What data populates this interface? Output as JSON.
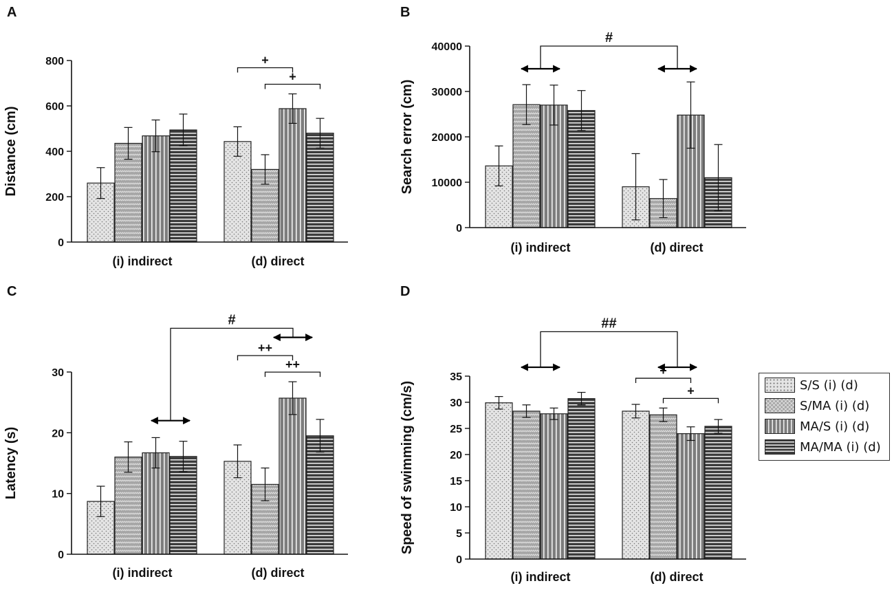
{
  "legend": {
    "entries": [
      {
        "label": "S/S (i) (d)",
        "pattern": "dots",
        "color": "#e4e4e4"
      },
      {
        "label": "S/MA (i) (d)",
        "pattern": "zigzag",
        "color": "#a6a6a6"
      },
      {
        "label": "MA/S (i) (d)",
        "pattern": "vertical-lines",
        "color": "#7d7d7d"
      },
      {
        "label": "MA/MA (i) (d)",
        "pattern": "horizontal-lines",
        "color": "#3c3c3c"
      }
    ]
  },
  "chart_data": [
    {
      "type": "bar",
      "panel": "A",
      "ylabel": "Distance (cm)",
      "ylim": [
        0,
        800
      ],
      "yticks": [
        "0",
        "200",
        "400",
        "600",
        "800"
      ],
      "categories": [
        "(i) indirect",
        "(d) direct"
      ],
      "series": [
        {
          "name": "S/S (i) (d)",
          "values": [
            260,
            443
          ],
          "errors": [
            68,
            65
          ]
        },
        {
          "name": "S/MA (i) (d)",
          "values": [
            435,
            320
          ],
          "errors": [
            70,
            65
          ]
        },
        {
          "name": "MA/S (i) (d)",
          "values": [
            468,
            588
          ],
          "errors": [
            70,
            65
          ]
        },
        {
          "name": "MA/MA (i) (d)",
          "values": [
            494,
            480
          ],
          "errors": [
            70,
            65
          ]
        }
      ],
      "annotations": [
        {
          "text": "+",
          "from": [
            1,
            0
          ],
          "to": [
            1,
            2
          ]
        },
        {
          "text": "+",
          "from": [
            1,
            1
          ],
          "to": [
            1,
            3
          ]
        }
      ],
      "arrows": []
    },
    {
      "type": "bar",
      "panel": "B",
      "ylabel": "Search error (cm)",
      "ylim": [
        0,
        40000
      ],
      "yticks": [
        "0",
        "10000",
        "20000",
        "30000",
        "40000"
      ],
      "categories": [
        "(i) indirect",
        "(d) direct"
      ],
      "series": [
        {
          "name": "S/S (i) (d)",
          "values": [
            13600,
            9000
          ],
          "errors": [
            4400,
            7300
          ]
        },
        {
          "name": "S/MA (i) (d)",
          "values": [
            27100,
            6400
          ],
          "errors": [
            4400,
            4200
          ]
        },
        {
          "name": "MA/S (i) (d)",
          "values": [
            27000,
            24800
          ],
          "errors": [
            4400,
            7300
          ]
        },
        {
          "name": "MA/MA (i) (d)",
          "values": [
            25800,
            11000
          ],
          "errors": [
            4400,
            7300
          ]
        }
      ],
      "annotations": [],
      "arrows": [
        {
          "text": "#",
          "groups": [
            0,
            1
          ],
          "bracket_y": 40000,
          "arrow_y": 35000
        }
      ]
    },
    {
      "type": "bar",
      "panel": "C",
      "ylabel": "Latency (s)",
      "ylim": [
        0,
        30
      ],
      "yticks": [
        "0",
        "10",
        "20",
        "30"
      ],
      "categories": [
        "(i) indirect",
        "(d) direct"
      ],
      "series": [
        {
          "name": "S/S (i) (d)",
          "values": [
            8.7,
            15.3
          ],
          "errors": [
            2.5,
            2.7
          ]
        },
        {
          "name": "S/MA (i) (d)",
          "values": [
            16.0,
            11.5
          ],
          "errors": [
            2.5,
            2.7
          ]
        },
        {
          "name": "MA/S (i) (d)",
          "values": [
            16.7,
            25.7
          ],
          "errors": [
            2.5,
            2.7
          ]
        },
        {
          "name": "MA/MA (i) (d)",
          "values": [
            16.1,
            19.5
          ],
          "errors": [
            2.5,
            2.7
          ]
        }
      ],
      "annotations": [
        {
          "text": "++",
          "from": [
            1,
            0
          ],
          "to": [
            1,
            2
          ]
        },
        {
          "text": "++",
          "from": [
            1,
            1
          ],
          "to": [
            1,
            3
          ]
        }
      ],
      "arrows": [
        {
          "text": "#",
          "groups": [
            0,
            1
          ],
          "bracket_y": 37.2,
          "arrow_y": 35.7,
          "arrow_y_first": 22
        }
      ]
    },
    {
      "type": "bar",
      "panel": "D",
      "ylabel": "Speed of swimming (cm/s)",
      "ylim": [
        0,
        35
      ],
      "yticks": [
        "0",
        "5",
        "10",
        "15",
        "20",
        "25",
        "30",
        "35"
      ],
      "categories": [
        "(i) indirect",
        "(d) direct"
      ],
      "series": [
        {
          "name": "S/S (i) (d)",
          "values": [
            29.9,
            28.3
          ],
          "errors": [
            1.2,
            1.3
          ]
        },
        {
          "name": "S/MA (i) (d)",
          "values": [
            28.3,
            27.6
          ],
          "errors": [
            1.2,
            1.3
          ]
        },
        {
          "name": "MA/S (i) (d)",
          "values": [
            27.8,
            24.0
          ],
          "errors": [
            1.1,
            1.3
          ]
        },
        {
          "name": "MA/MA (i) (d)",
          "values": [
            30.7,
            25.4
          ],
          "errors": [
            1.2,
            1.3
          ]
        }
      ],
      "annotations": [
        {
          "text": "+",
          "from": [
            1,
            0
          ],
          "to": [
            1,
            2
          ]
        },
        {
          "text": "+",
          "from": [
            1,
            1
          ],
          "to": [
            1,
            3
          ]
        }
      ],
      "arrows": [
        {
          "text": "##",
          "groups": [
            0,
            1
          ],
          "bracket_y": 43.5,
          "arrow_y": 36.7
        }
      ]
    }
  ]
}
